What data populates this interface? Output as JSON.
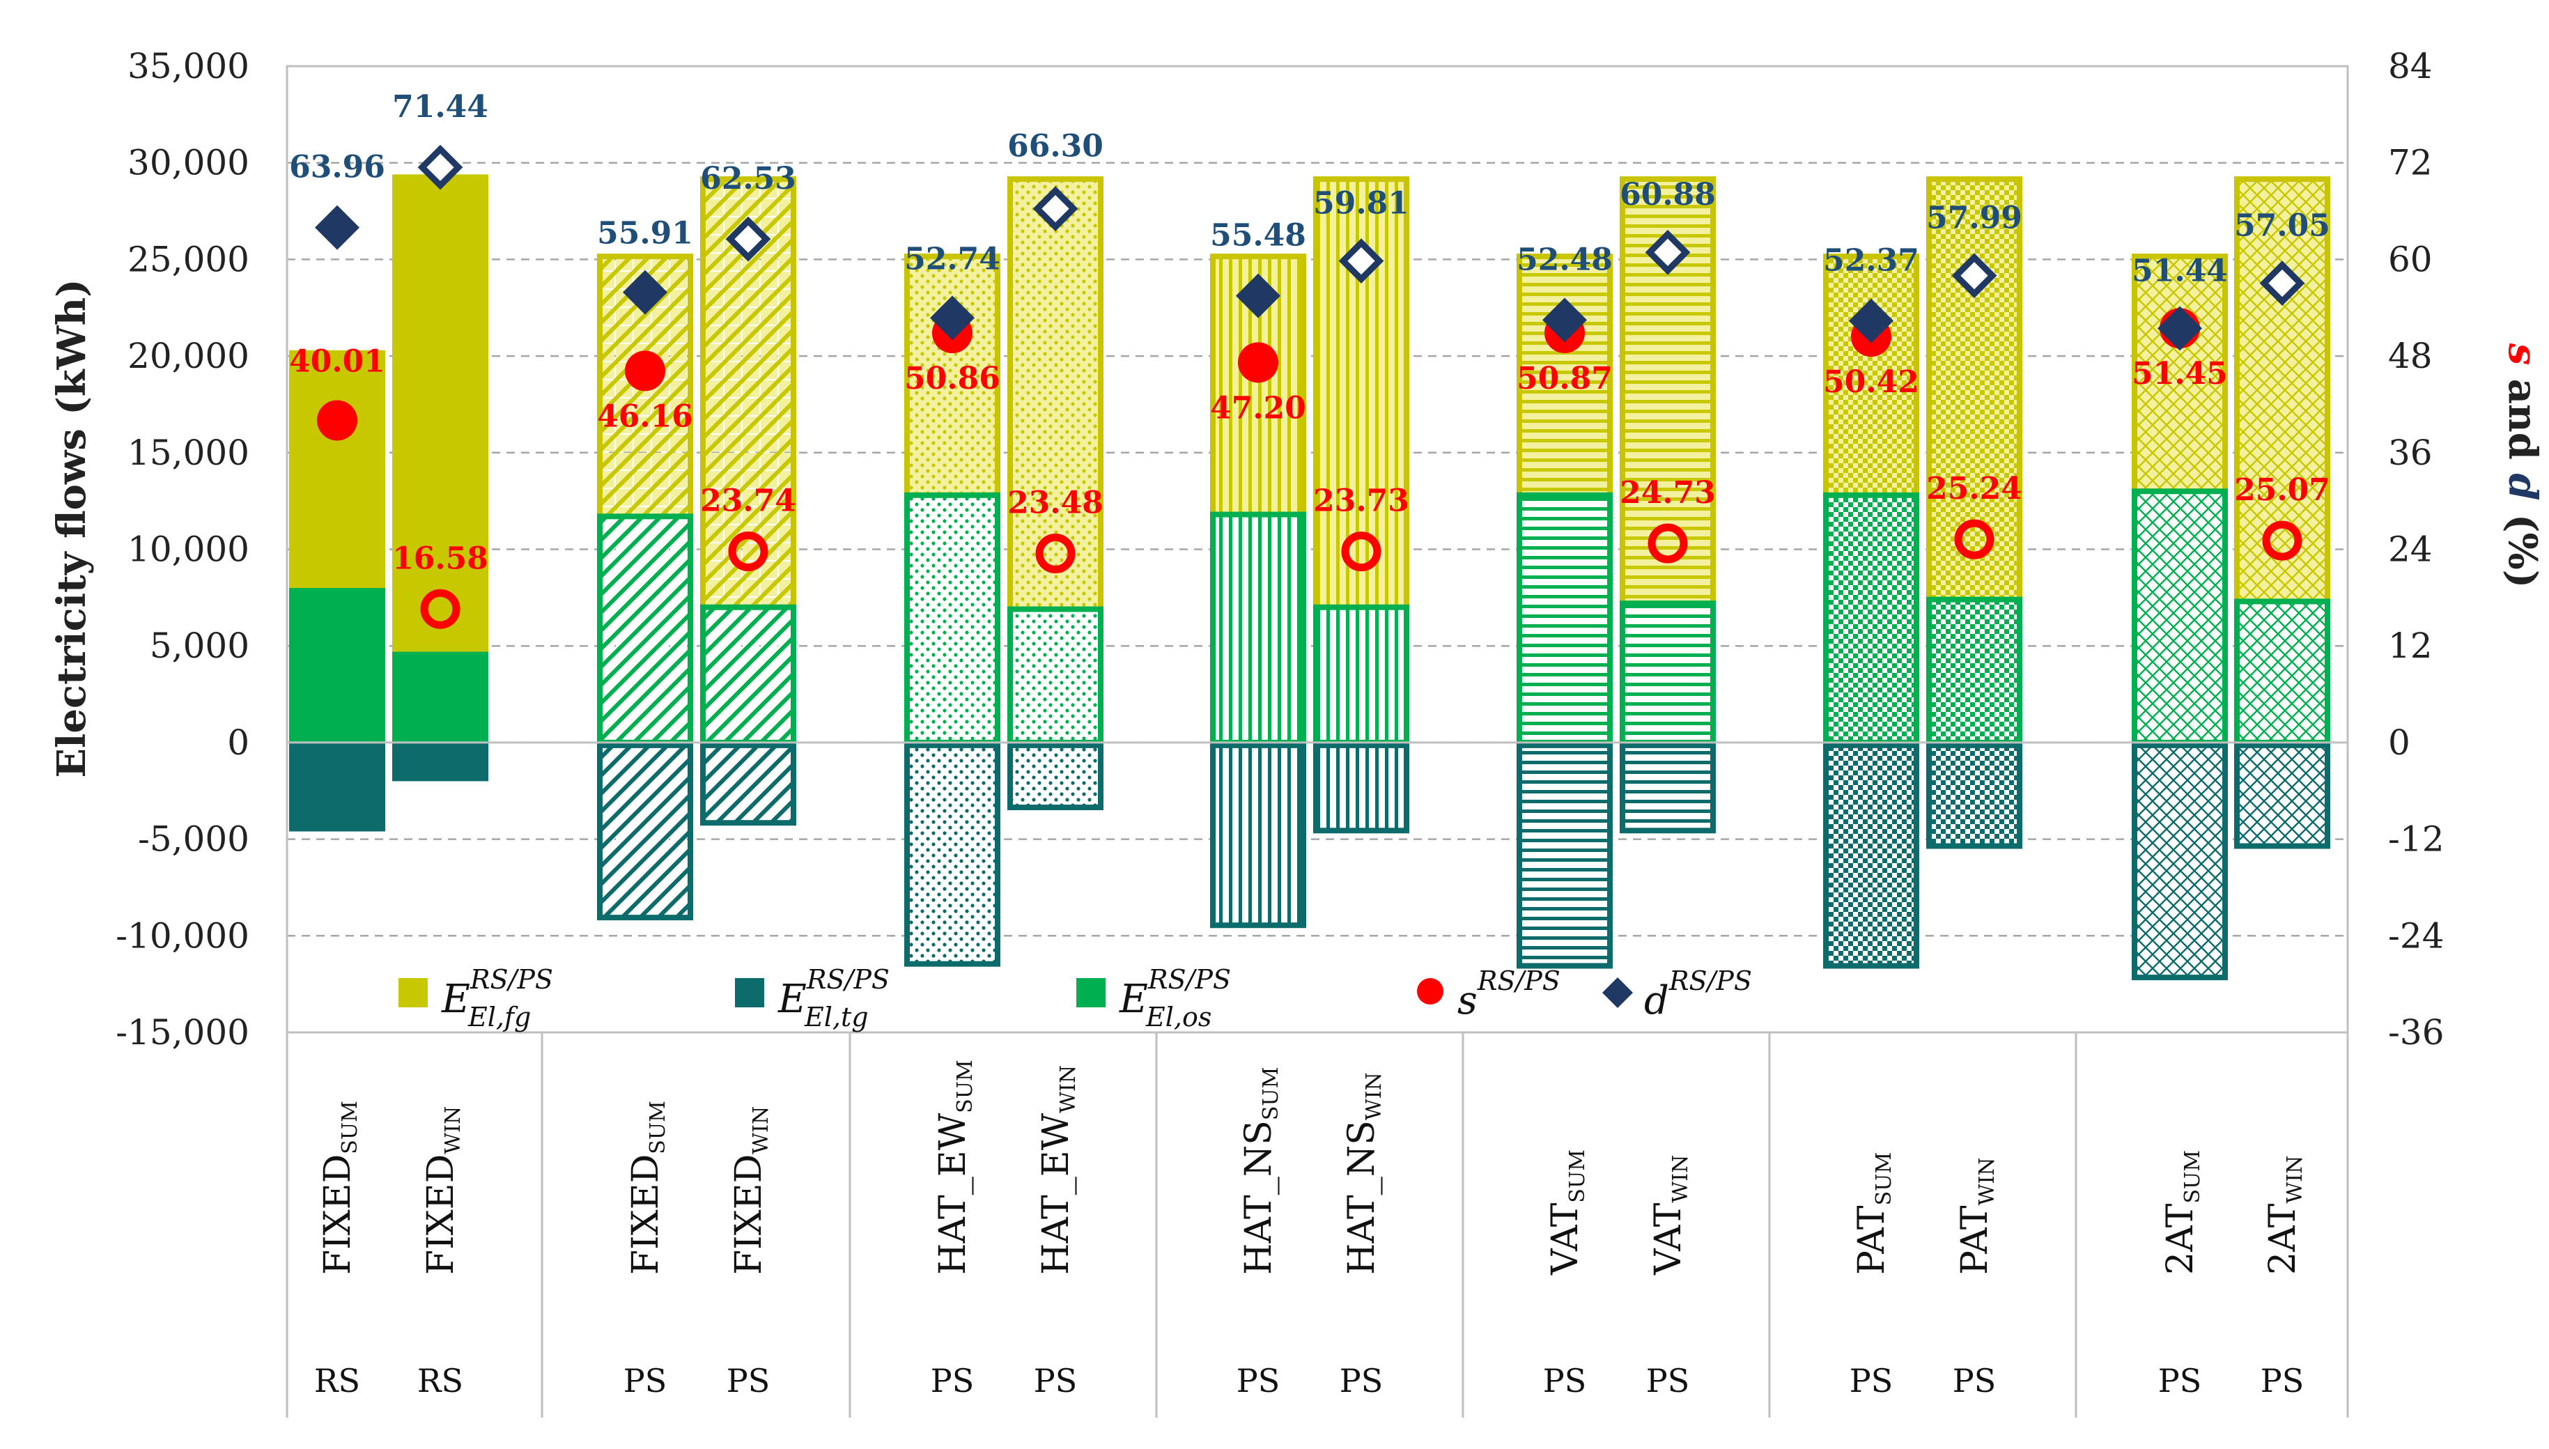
{
  "chart_data": {
    "type": "bar",
    "subtype": "stacked-bar-with-dual-axis-markers",
    "categories": [
      {
        "base": "FIXED",
        "sub": "SUM",
        "system": "RS",
        "style": "solid"
      },
      {
        "base": "FIXED",
        "sub": "WIN",
        "system": "RS",
        "style": "solid"
      },
      {
        "base": "FIXED",
        "sub": "SUM",
        "system": "PS",
        "style": "diag"
      },
      {
        "base": "FIXED",
        "sub": "WIN",
        "system": "PS",
        "style": "diag"
      },
      {
        "base": "HAT_EW",
        "sub": "SUM",
        "system": "PS",
        "style": "dots"
      },
      {
        "base": "HAT_EW",
        "sub": "WIN",
        "system": "PS",
        "style": "dots"
      },
      {
        "base": "HAT_NS",
        "sub": "SUM",
        "system": "PS",
        "style": "vert"
      },
      {
        "base": "HAT_NS",
        "sub": "WIN",
        "system": "PS",
        "style": "vert"
      },
      {
        "base": "VAT",
        "sub": "SUM",
        "system": "PS",
        "style": "horiz"
      },
      {
        "base": "VAT",
        "sub": "WIN",
        "system": "PS",
        "style": "horiz"
      },
      {
        "base": "PAT",
        "sub": "SUM",
        "system": "PS",
        "style": "check"
      },
      {
        "base": "PAT",
        "sub": "WIN",
        "system": "PS",
        "style": "check"
      },
      {
        "base": "2AT",
        "sub": "SUM",
        "system": "PS",
        "style": "cross"
      },
      {
        "base": "2AT",
        "sub": "WIN",
        "system": "PS",
        "style": "cross"
      }
    ],
    "series": [
      {
        "name": "E_El,fg^RS/PS",
        "axis": "left",
        "unit": "kWh",
        "values": [
          20300,
          29400,
          25300,
          29300,
          25300,
          29300,
          25300,
          29300,
          25300,
          29300,
          25300,
          29300,
          25300,
          29300
        ]
      },
      {
        "name": "E_El,os^RS/PS",
        "axis": "left",
        "unit": "kWh",
        "values": [
          8000,
          4700,
          11700,
          7000,
          12800,
          6900,
          11800,
          7000,
          12800,
          7200,
          12800,
          7400,
          13000,
          7300
        ]
      },
      {
        "name": "E_El,tg^RS/PS",
        "axis": "left",
        "unit": "kWh",
        "values": [
          -4600,
          -2000,
          -9200,
          -4300,
          -11600,
          -3500,
          -9600,
          -4700,
          -11700,
          -4700,
          -11700,
          -5500,
          -12300,
          -5500
        ]
      },
      {
        "name": "s^RS/PS",
        "axis": "right",
        "unit": "%",
        "values": [
          40.01,
          16.58,
          46.16,
          23.74,
          50.86,
          23.48,
          47.2,
          23.73,
          50.87,
          24.73,
          50.42,
          25.24,
          51.45,
          25.07
        ]
      },
      {
        "name": "d^RS/PS",
        "axis": "right",
        "unit": "%",
        "values": [
          63.96,
          71.44,
          55.91,
          62.53,
          52.74,
          66.3,
          55.48,
          59.81,
          52.48,
          60.88,
          52.37,
          57.99,
          51.44,
          57.05
        ]
      }
    ],
    "s_labels": [
      "40.01",
      "16.58",
      "46.16",
      "23.74",
      "50.86",
      "23.48",
      "47.20",
      "23.73",
      "50.87",
      "24.73",
      "50.42",
      "25.24",
      "51.45",
      "25.07"
    ],
    "d_labels": [
      "63.96",
      "71.44",
      "55.91",
      "62.53",
      "52.74",
      "66.30",
      "55.48",
      "59.81",
      "52.48",
      "60.88",
      "52.37",
      "57.99",
      "51.44",
      "57.05"
    ],
    "y_left": {
      "label": "Electricity flows (kWh)",
      "range": [
        -15000,
        35000
      ],
      "ticks": [
        35000,
        30000,
        25000,
        20000,
        15000,
        10000,
        5000,
        0,
        -5000,
        -10000,
        -15000
      ],
      "tick_labels": [
        "35,000",
        "30,000",
        "25,000",
        "20,000",
        "15,000",
        "10,000",
        "5,000",
        "0",
        "-5,000",
        "-10,000",
        "-15,000"
      ]
    },
    "y_right": {
      "label_parts": [
        "s",
        " and ",
        "d",
        " (%)"
      ],
      "range": [
        -36,
        84
      ],
      "ticks": [
        84,
        72,
        60,
        48,
        36,
        24,
        12,
        0,
        -12,
        -24,
        -36
      ],
      "tick_labels": [
        "84",
        "72",
        "60",
        "48",
        "36",
        "24",
        "12",
        "0",
        "-12",
        "-24",
        "-36"
      ]
    },
    "grid": true,
    "legend": {
      "placement": "bottom-inside",
      "items": [
        {
          "key": "fg",
          "main": "E",
          "sup": "RS/PS",
          "sub": "El,fg",
          "color": "#c8c800"
        },
        {
          "key": "tg",
          "main": "E",
          "sup": "RS/PS",
          "sub": "El,tg",
          "color": "#0d6b6b"
        },
        {
          "key": "os",
          "main": "E",
          "sup": "RS/PS",
          "sub": "El,os",
          "color": "#00b050"
        },
        {
          "key": "s",
          "main": "s",
          "sup": "RS/PS",
          "sub": "",
          "color": "#ff0000"
        },
        {
          "key": "d",
          "main": "d",
          "sup": "RS/PS",
          "sub": "",
          "color": "#1f3864"
        }
      ]
    },
    "colors": {
      "fg": "#c8c800",
      "fg_light": "#f3f0a0",
      "fg_stroke": "#c9c400",
      "os": "#00b050",
      "tg": "#0d6b6b",
      "s": "#ff0000",
      "d": "#1f3864",
      "d_label": "#1f4e79"
    }
  }
}
